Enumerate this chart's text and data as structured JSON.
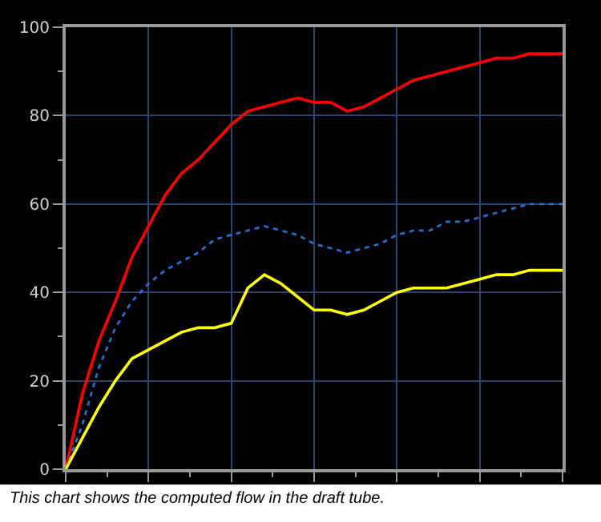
{
  "chart_data": {
    "type": "line",
    "annotations": [
      "This chart shows the computed flow in the draft tube."
    ],
    "categories": [
      null,
      null,
      null,
      null,
      null,
      null,
      null,
      null,
      null,
      null,
      null,
      null,
      null,
      null,
      null,
      null,
      null,
      null,
      null,
      null,
      null,
      null,
      null,
      null,
      null,
      null,
      null,
      null,
      null,
      null,
      null
    ],
    "ylim": [
      0,
      100
    ],
    "yticks": [
      0,
      20,
      40,
      60,
      80,
      100
    ],
    "grid": true,
    "tick_labels": "y",
    "marker": "none",
    "series": [
      {
        "color": "#ff0000",
        "line_style": "solid",
        "values": [
          0,
          17,
          29,
          38,
          48,
          55,
          62,
          67,
          70,
          74,
          78,
          81,
          82,
          83,
          84,
          83,
          83,
          81,
          82,
          84,
          86,
          88,
          89,
          90,
          91,
          92,
          93,
          93,
          94,
          94,
          94
        ]
      },
      {
        "color": "#1e70d8",
        "line_style": "dotted",
        "values": [
          0,
          10,
          23,
          32,
          38,
          42,
          45,
          47,
          49,
          52,
          53,
          54,
          55,
          54,
          53,
          51,
          50,
          49,
          50,
          51,
          53,
          54,
          54,
          56,
          56,
          57,
          58,
          59,
          60,
          60,
          60
        ]
      },
      {
        "color": "#ffff00",
        "line_style": "solid",
        "values": [
          0,
          7,
          14,
          20,
          25,
          27,
          29,
          31,
          32,
          32,
          33,
          41,
          44,
          42,
          39,
          36,
          36,
          35,
          36,
          38,
          40,
          41,
          41,
          41,
          42,
          43,
          44,
          44,
          45,
          45,
          45
        ]
      }
    ]
  }
}
